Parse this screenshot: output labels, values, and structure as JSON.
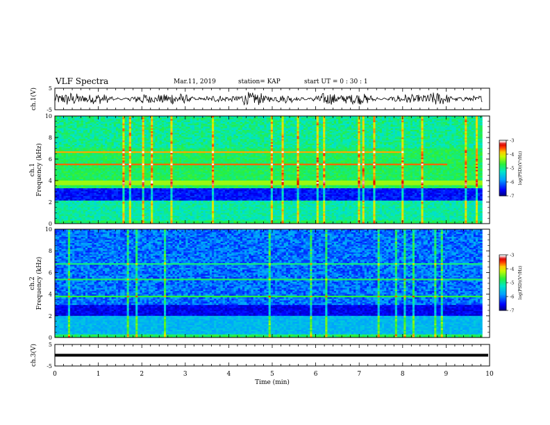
{
  "header": {
    "title": "VLF Spectra",
    "date": "Mar.11, 2019",
    "station": "station= KAP",
    "start_ut": "start  UT =   0  : 30 : 1"
  },
  "chart_data": [
    {
      "type": "line",
      "panel": "ch1-waveform",
      "ylabel": "ch.1(V)",
      "ylim": [
        -5,
        5
      ],
      "ytick_labels": [
        "5",
        "-5"
      ],
      "x_range_min": [
        0,
        9.83
      ],
      "description_values": "noise waveform around 0 V, amplitude roughly ±3 V"
    },
    {
      "type": "heatmap",
      "panel": "ch1-spectrogram",
      "ylabel_top": "ch.1",
      "ylabel": "Frequency  (kHz)",
      "ylim": [
        0,
        10
      ],
      "ytick_labels": [
        "0",
        "2",
        "4",
        "6",
        "8",
        "10"
      ],
      "xlim": [
        0,
        10
      ],
      "colorbar": {
        "label": "log(PSD)(V²/Hz)",
        "range": [
          -7,
          -3
        ],
        "tick_labels": [
          "-3",
          "-4",
          "-5",
          "-6",
          "-7"
        ],
        "colors": [
          "#000080",
          "#0000ff",
          "#00a0ff",
          "#00ffa0",
          "#60ff00",
          "#ffff00",
          "#ff8000",
          "#ff0000",
          "#ffffff"
        ]
      }
    },
    {
      "type": "heatmap",
      "panel": "ch2-spectrogram",
      "ylabel_top": "ch.2",
      "ylabel": "Frequency  (kHz)",
      "ylim": [
        0,
        10
      ],
      "ytick_labels": [
        "0",
        "2",
        "4",
        "6",
        "8",
        "10"
      ],
      "xlim": [
        0,
        10
      ],
      "colorbar": {
        "label": "log(PSD)(V²/Hz)",
        "range": [
          -7,
          -3
        ],
        "tick_labels": [
          "-3",
          "-4",
          "-5",
          "-6",
          "-7"
        ]
      }
    },
    {
      "type": "line",
      "panel": "ch3-waveform",
      "ylabel": "ch.3(V)",
      "ylim": [
        -5,
        5
      ],
      "ytick_labels": [
        "5",
        "-5"
      ],
      "constant_value": 0
    }
  ],
  "xaxis": {
    "label": "Time  (min)",
    "tick_labels": [
      "0",
      "1",
      "2",
      "3",
      "4",
      "5",
      "6",
      "7",
      "8",
      "9",
      "10"
    ],
    "xlim": [
      0,
      10
    ]
  }
}
